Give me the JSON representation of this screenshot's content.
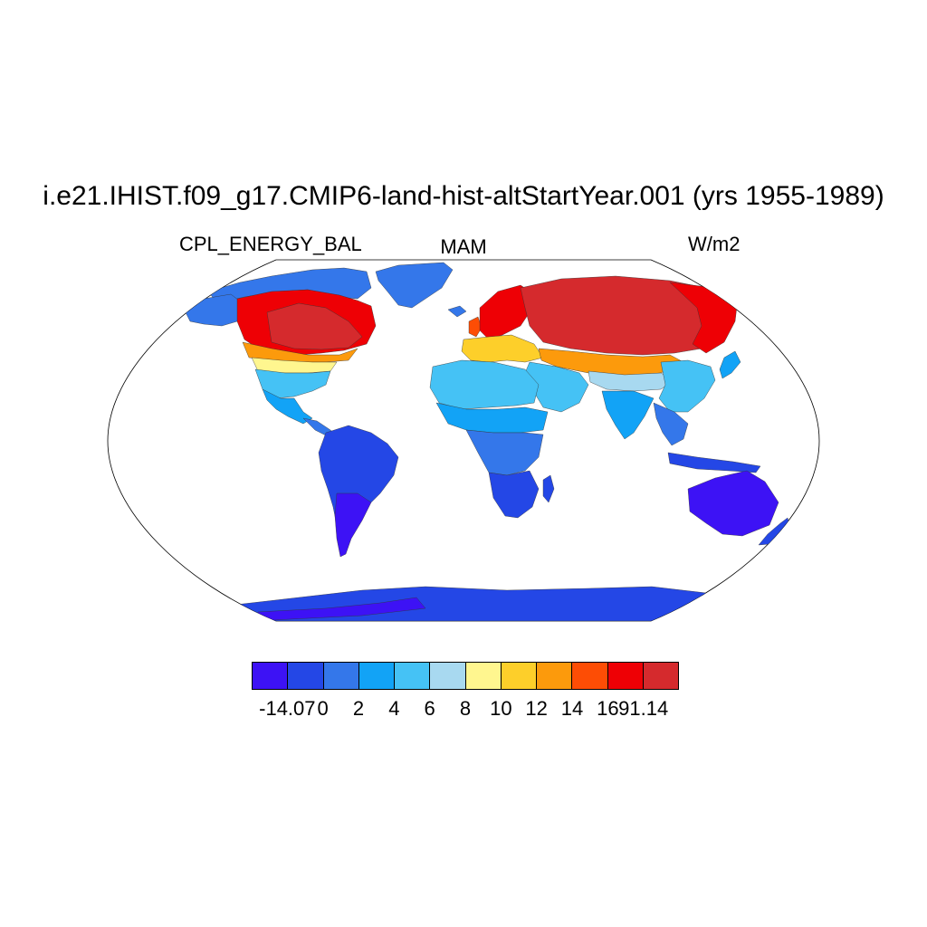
{
  "title": "i.e21.IHIST.f09_g17.CMIP6-land-hist-altStartYear.001 (yrs 1955-1989)",
  "left_label": "CPL_ENERGY_BAL",
  "center_label": "MAM",
  "right_label": "W/m2",
  "projection": "Robinson",
  "colorbar": {
    "colors": [
      "#3d12f5",
      "#2447e6",
      "#3477ea",
      "#12a3f6",
      "#45c2f5",
      "#a8d9f0",
      "#fff68f",
      "#fdcf2a",
      "#fc9a0c",
      "#fd4d05",
      "#ee0005",
      "#d52a2d"
    ],
    "labels": [
      "-14.07",
      "0",
      "2",
      "4",
      "6",
      "8",
      "10",
      "12",
      "14",
      "16",
      "91.14"
    ]
  },
  "region_colors": {
    "arctic_canada": "#3477ea",
    "canada": "#ee0005",
    "canada_core": "#d52a2d",
    "usa_north": "#fc9a0c",
    "usa_mid": "#fff68f",
    "usa_south": "#45c2f5",
    "mexico": "#12a3f6",
    "central_america": "#3477ea",
    "alaska": "#3477ea",
    "greenland": "#3477ea",
    "south_america": "#2447e6",
    "south_america_south": "#3d12f5",
    "africa_north": "#45c2f5",
    "africa_sahel": "#12a3f6",
    "africa_central": "#3477ea",
    "africa_south": "#2447e6",
    "madagascar": "#2447e6",
    "europe_north": "#ee0005",
    "europe_south": "#fdcf2a",
    "middle_east": "#45c2f5",
    "russia": "#d52a2d",
    "siberia_east": "#ee0005",
    "central_asia": "#fc9a0c",
    "tibet": "#a8d9f0",
    "india": "#12a3f6",
    "southeast_asia": "#3477ea",
    "china": "#45c2f5",
    "indonesia": "#2447e6",
    "australia": "#3d12f5",
    "new_zealand": "#2447e6",
    "antarctica": "#2447e6",
    "antarctica_edge": "#3d12f5",
    "uk": "#fd4d05",
    "japan": "#12a3f6",
    "iceland": "#3477ea"
  }
}
